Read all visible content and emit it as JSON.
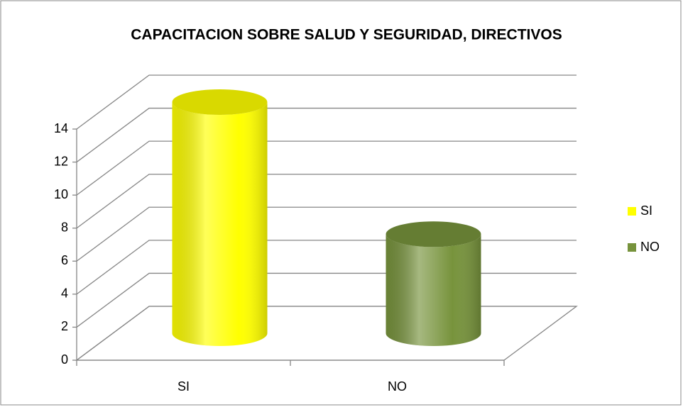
{
  "chart_data": {
    "type": "bar3d",
    "title": "CAPACITACION SOBRE SALUD Y SEGURIDAD, DIRECTIVOS",
    "categories": [
      "SI",
      "NO"
    ],
    "series": [
      {
        "name": "SI",
        "color": "#ffff00",
        "values": [
          14,
          null
        ]
      },
      {
        "name": "NO",
        "color": "#77933c",
        "values": [
          null,
          6
        ]
      }
    ],
    "ylim": [
      0,
      14
    ],
    "yticks": [
      0,
      2,
      4,
      6,
      8,
      10,
      12,
      14
    ],
    "grid": true,
    "legend": "right"
  }
}
